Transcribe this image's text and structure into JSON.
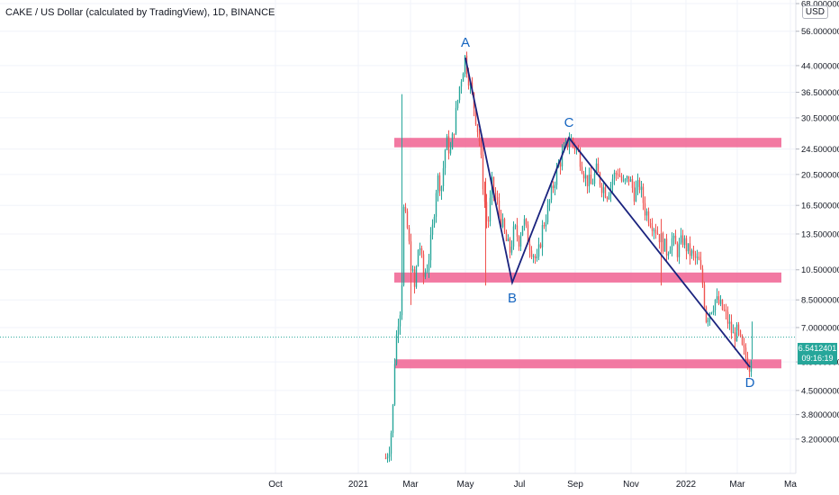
{
  "header": {
    "title": "CAKE / US Dollar (calculated by TradingView), 1D, BINANCE",
    "currency_badge": "USD"
  },
  "price_tag": {
    "price": "6.5412401",
    "countdown": "09:16:19",
    "color": "#26a69a"
  },
  "colors": {
    "zone": "#f06292",
    "pattern_line": "#1a237e",
    "pattern_label": "#1565c0",
    "up_candle": "#26a69a",
    "down_candle": "#ef5350",
    "grid": "#f0f3fa"
  },
  "chart_data": {
    "type": "candlestick",
    "scale": "log",
    "ylim": [
      2.8,
      68
    ],
    "y_ticks": [
      "68.0000000",
      "56.0000000",
      "44.0000000",
      "36.5000000",
      "30.5000000",
      "24.5000000",
      "20.5000000",
      "16.5000000",
      "13.5000000",
      "10.5000000",
      "8.5000000",
      "7.0000000",
      "5.5000000",
      "4.5000000",
      "3.8000000",
      "3.2000000"
    ],
    "x_ticks": [
      "Oct",
      "2021",
      "Mar",
      "May",
      "Jul",
      "Sep",
      "Nov",
      "2022",
      "Mar",
      "Ma"
    ],
    "current_price": 6.5412401,
    "support_resistance_zones": [
      {
        "low": 24.8,
        "high": 26.5
      },
      {
        "low": 9.6,
        "high": 10.3
      },
      {
        "low": 5.3,
        "high": 5.6
      }
    ],
    "pattern": [
      {
        "label": "A",
        "price": 46.5
      },
      {
        "label": "B",
        "price": 9.6
      },
      {
        "label": "C",
        "price": 26.5
      },
      {
        "label": "D",
        "price": 5.3
      }
    ]
  }
}
